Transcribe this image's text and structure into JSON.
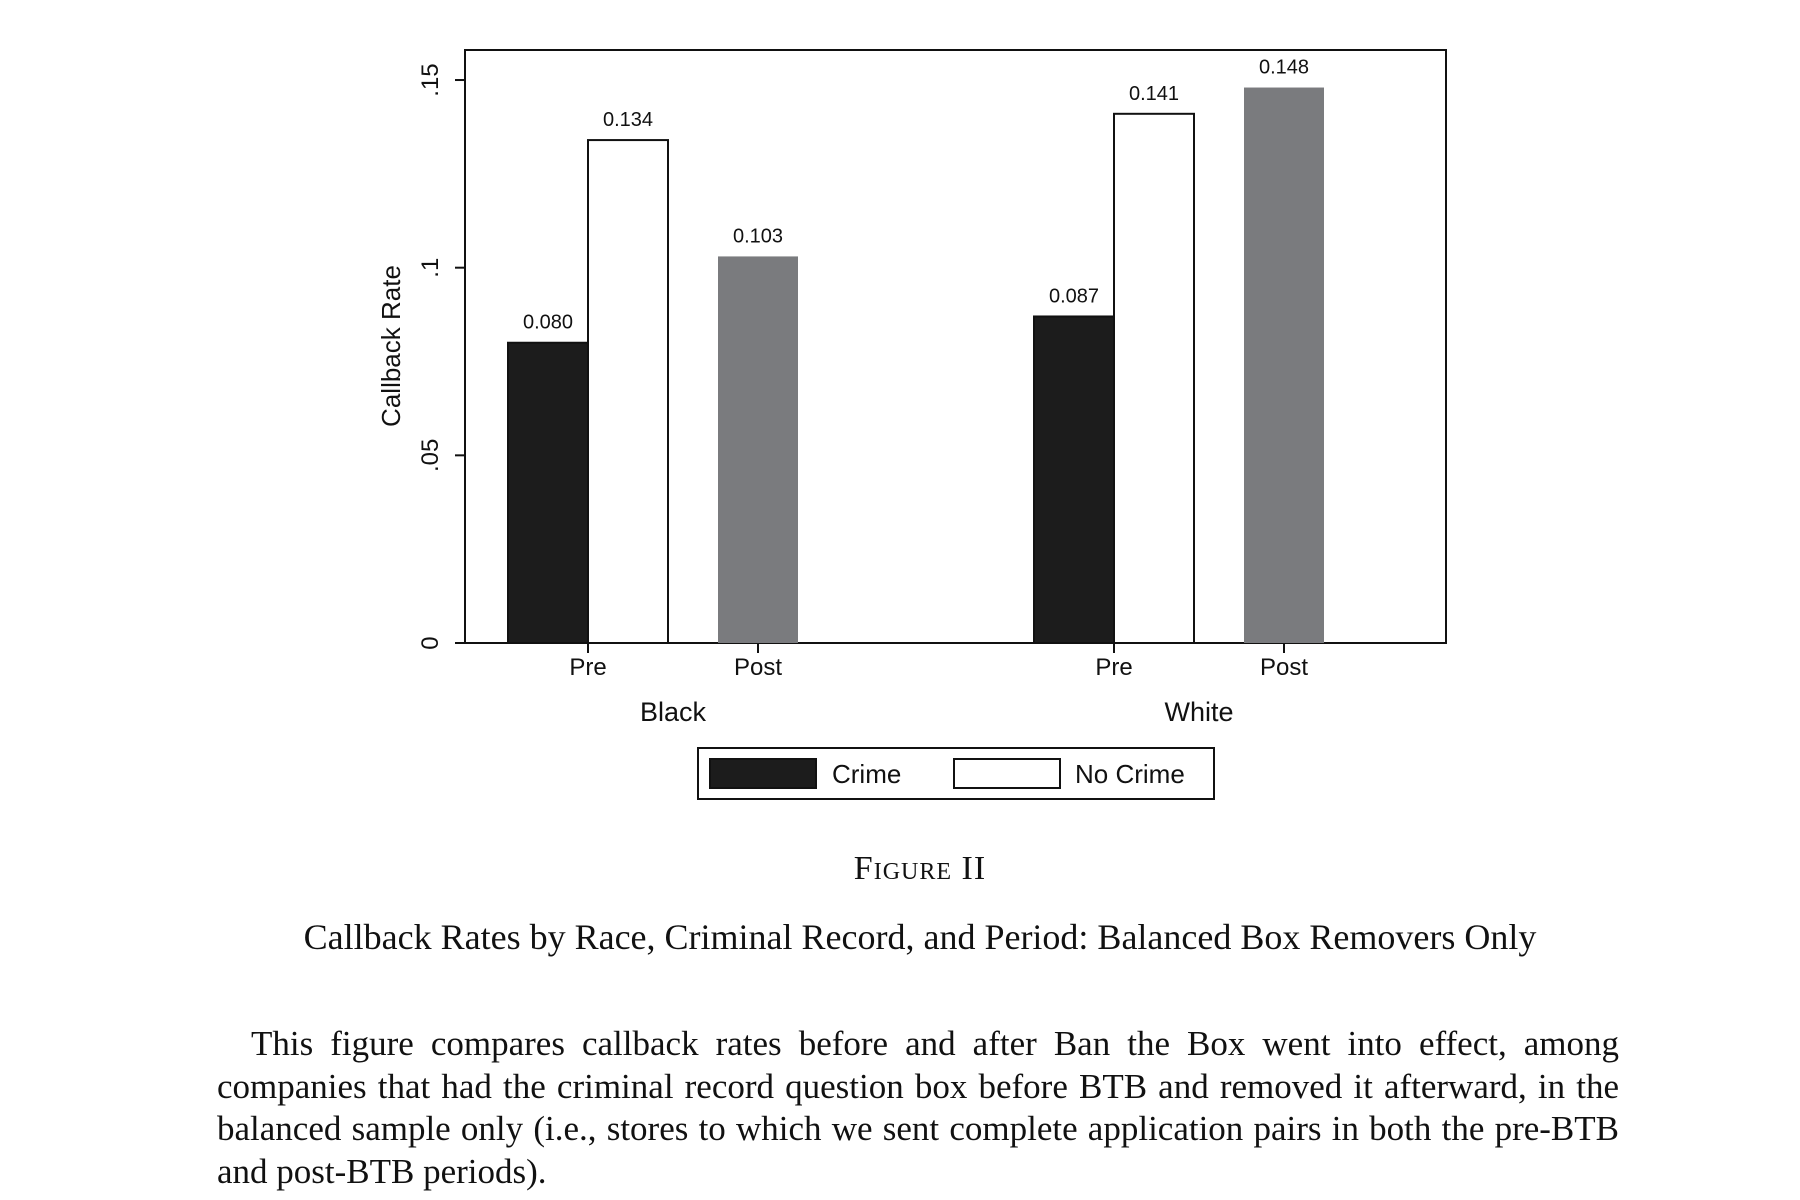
{
  "chart_data": {
    "type": "bar",
    "ylabel": "Callback Rate",
    "ylim": [
      0,
      0.158
    ],
    "yticks": [
      {
        "value": 0,
        "label": "0"
      },
      {
        "value": 0.05,
        "label": ".05"
      },
      {
        "value": 0.1,
        "label": ".1"
      },
      {
        "value": 0.15,
        "label": ".15"
      }
    ],
    "groups": [
      {
        "name": "Black",
        "periods": [
          {
            "name": "Pre",
            "bars": [
              {
                "series": "Crime",
                "value": 0.08,
                "label": "0.080"
              },
              {
                "series": "No Crime",
                "value": 0.134,
                "label": "0.134"
              }
            ]
          },
          {
            "name": "Post",
            "bars": [
              {
                "series": "Post",
                "value": 0.103,
                "label": "0.103"
              }
            ]
          }
        ]
      },
      {
        "name": "White",
        "periods": [
          {
            "name": "Pre",
            "bars": [
              {
                "series": "Crime",
                "value": 0.087,
                "label": "0.087"
              },
              {
                "series": "No Crime",
                "value": 0.141,
                "label": "0.141"
              }
            ]
          },
          {
            "name": "Post",
            "bars": [
              {
                "series": "Post",
                "value": 0.148,
                "label": "0.148"
              }
            ]
          }
        ]
      }
    ],
    "legend": {
      "placement": "bottom",
      "entries": [
        {
          "label": "Crime",
          "color": "#1c1c1c"
        },
        {
          "label": "No Crime",
          "color": "#ffffff"
        }
      ]
    },
    "colors": {
      "Crime": "#1c1c1c",
      "No Crime": "#ffffff",
      "Post": "#7a7b7e"
    },
    "grid": false
  },
  "caption": {
    "figure_label": "Figure II",
    "title": "Callback Rates by Race, Criminal Record, and Period: Balanced Box Removers Only",
    "note": "This figure compares callback rates before and after Ban the Box went into effect, among companies that had the criminal record question box before BTB and removed it afterward, in the balanced sample only (i.e., stores to which we sent complete application pairs in both the pre-BTB and post-BTB periods)."
  }
}
